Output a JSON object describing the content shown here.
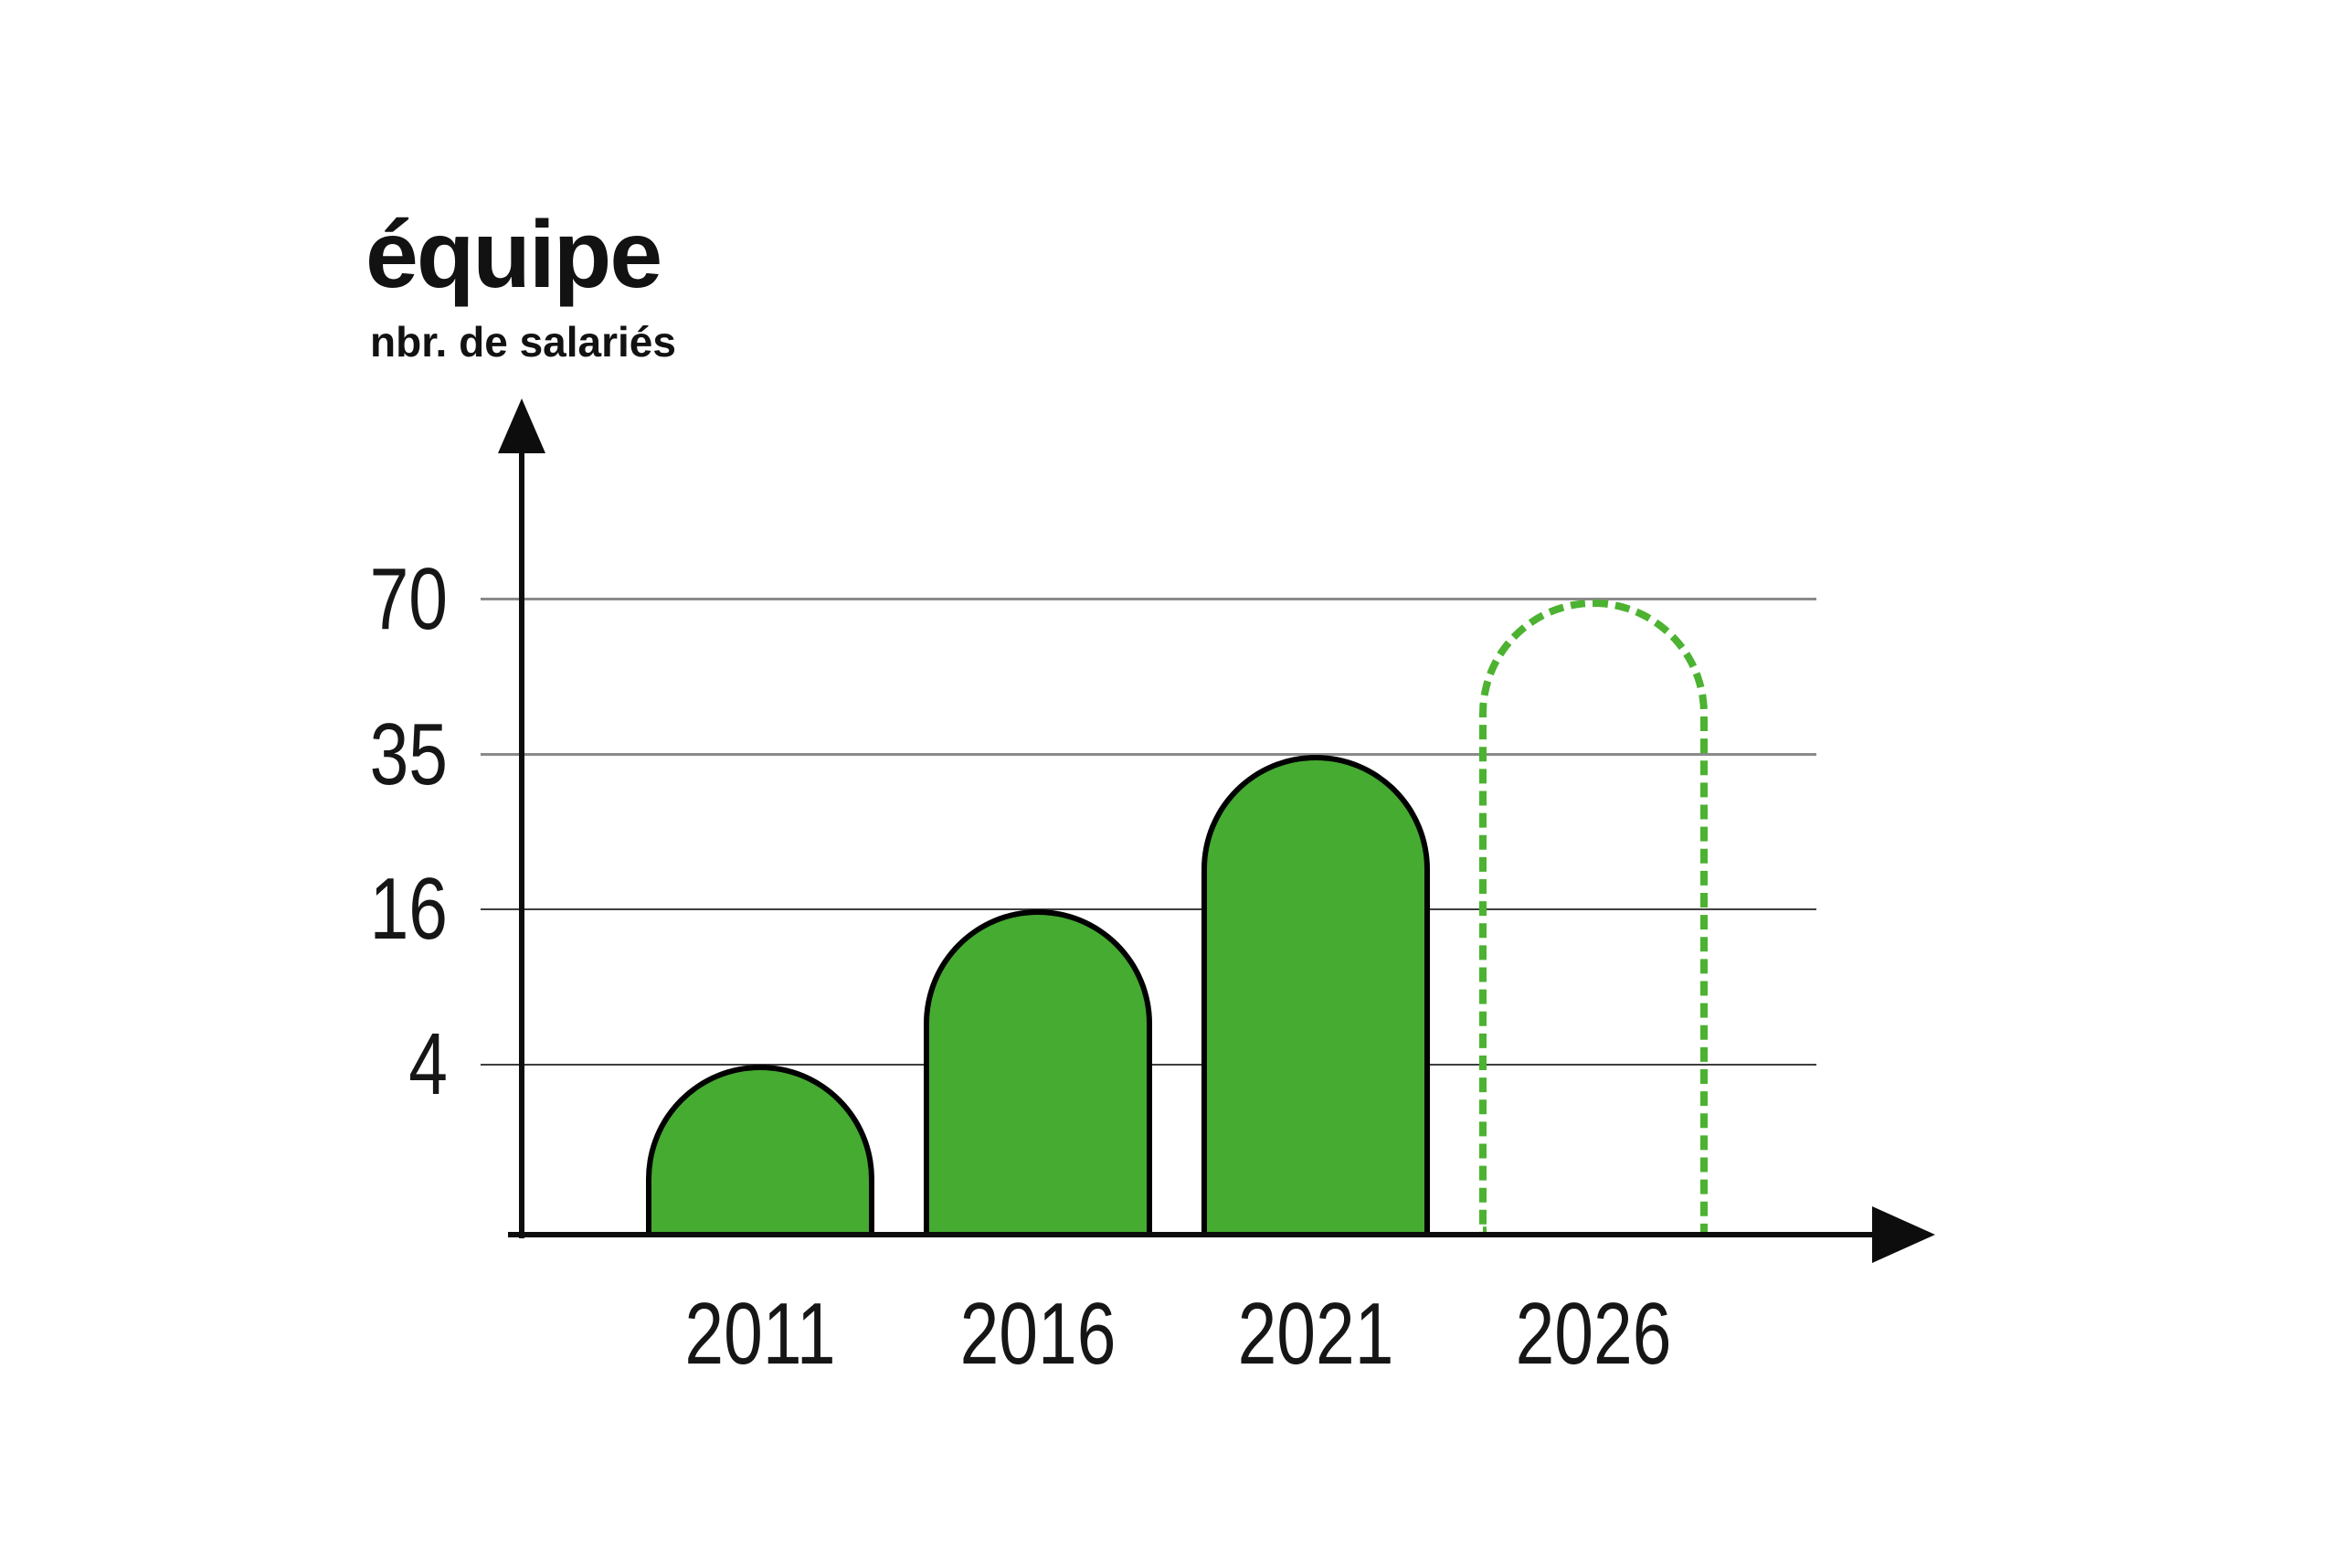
{
  "title": "équipe",
  "subtitle": "nbr. de salariés",
  "colors": {
    "background": "#ffffff",
    "bar_fill": "#46AB31",
    "bar_outline": "#000000",
    "dashed_outline": "#4CB231",
    "gridline_major": "#8a8a8a",
    "gridline_minor": "#3e3e3e",
    "axis": "#0d0d0d",
    "text": "#161616"
  },
  "chart_data": {
    "type": "bar",
    "title": "équipe",
    "ylabel": "nbr. de salariés",
    "categories": [
      "2011",
      "2016",
      "2021",
      "2026"
    ],
    "values": [
      4,
      16,
      35,
      70
    ],
    "bar_styles": [
      "solid",
      "solid",
      "solid",
      "dashed-outline"
    ],
    "yticks": [
      70,
      35,
      16,
      4
    ],
    "grid": true,
    "legend_position": "none",
    "axis_arrows": true
  }
}
